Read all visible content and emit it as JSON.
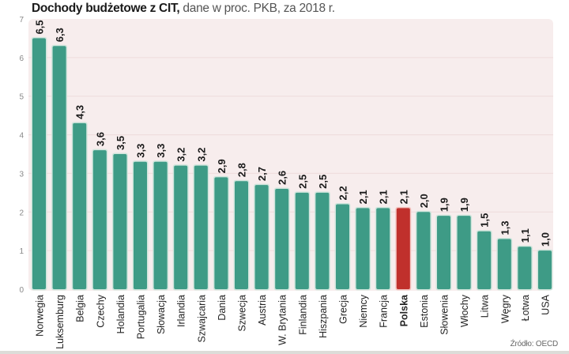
{
  "title": {
    "bold": "Dochody budżetowe z CIT,",
    "light": " dane w proc. PKB, za 2018 r."
  },
  "source": "Źródło: OECD",
  "colors": {
    "bar": "#3e9b86",
    "highlight": "#c0302c",
    "plot_bg": "#f7eded",
    "grid": "#eedcdc"
  },
  "chart_data": {
    "type": "bar",
    "title": "Dochody budżetowe z CIT, dane w proc. PKB, za 2018 r.",
    "xlabel": "",
    "ylabel": "",
    "ylim": [
      0,
      7
    ],
    "yticks": [
      0,
      1,
      2,
      3,
      4,
      5,
      6,
      7
    ],
    "grid": true,
    "highlight_category": "Polska",
    "categories": [
      "Norwegia",
      "Luksemburg",
      "Belgia",
      "Czechy",
      "Holandia",
      "Portugalia",
      "Słowacja",
      "Irlandia",
      "Szwajcaria",
      "Dania",
      "Szwecja",
      "Austria",
      "W. Brytania",
      "Finlandia",
      "Hiszpania",
      "Grecja",
      "Niemcy",
      "Francja",
      "Polska",
      "Estonia",
      "Słowenia",
      "Włochy",
      "Litwa",
      "Węgry",
      "Łotwa",
      "USA"
    ],
    "values": [
      6.5,
      6.3,
      4.3,
      3.6,
      3.5,
      3.3,
      3.3,
      3.2,
      3.2,
      2.9,
      2.8,
      2.7,
      2.6,
      2.5,
      2.5,
      2.2,
      2.1,
      2.1,
      2.1,
      2.0,
      1.9,
      1.9,
      1.5,
      1.3,
      1.1,
      1.0
    ],
    "value_labels": [
      "6,5",
      "6,3",
      "4,3",
      "3,6",
      "3,5",
      "3,3",
      "3,3",
      "3,2",
      "3,2",
      "2,9",
      "2,8",
      "2,7",
      "2,6",
      "2,5",
      "2,5",
      "2,2",
      "2,1",
      "2,1",
      "2,1",
      "2,0",
      "1,9",
      "1,9",
      "1,5",
      "1,3",
      "1,1",
      "1,0"
    ],
    "source": "Źródło: OECD"
  }
}
